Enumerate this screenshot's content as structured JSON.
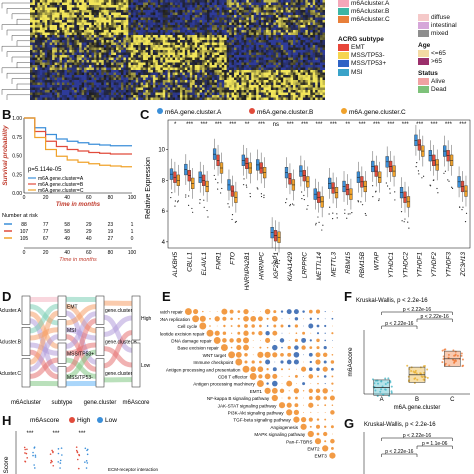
{
  "panels": {
    "B": "B",
    "C": "C",
    "D": "D",
    "E": "E",
    "F": "F",
    "G": "G",
    "H": "H"
  },
  "colors": {
    "cluster_a": "#3b8fd9",
    "cluster_b": "#e14b3b",
    "cluster_c": "#f0a22b",
    "heat_low": "#2e3b9a",
    "heat_high": "#f2e65a",
    "heat_mid": "#1a1a1a"
  },
  "heatmap_legend": {
    "top_items": [
      {
        "label": "m6Acluster.A",
        "color": "#f4a7b9"
      },
      {
        "label": "m6Acluster.B",
        "color": "#3bb5a5"
      },
      {
        "label": "m6Acluster.C",
        "color": "#e87f3a"
      }
    ],
    "lauren_items": [
      {
        "label": "diffuse",
        "color": "#f5c9c9"
      },
      {
        "label": "intestinal",
        "color": "#d6a6d9"
      },
      {
        "label": "mixed",
        "color": "#8e8e8e"
      }
    ],
    "acrg_title": "ACRG subtype",
    "acrg_items": [
      {
        "label": "EMT",
        "color": "#e8463a"
      },
      {
        "label": "MSS/TP53-",
        "color": "#f5d44e"
      },
      {
        "label": "MSS/TP53+",
        "color": "#2f63c5"
      },
      {
        "label": "MSI",
        "color": "#3aa3c9"
      }
    ],
    "age_title": "Age",
    "age_items": [
      {
        "label": "<=65",
        "color": "#f3d9a3"
      },
      {
        "label": ">65",
        "color": "#9b2f6b"
      }
    ],
    "status_title": "Status",
    "status_items": [
      {
        "label": "Alive",
        "color": "#f0a2a2"
      },
      {
        "label": "Dead",
        "color": "#7ec27a"
      }
    ]
  },
  "km": {
    "ylabel": "Survival probability",
    "xlabel": "Time in months",
    "pvalue": "p=5.114e-05",
    "strata": [
      "m6A.gene.cluster=A",
      "m6A.gene.cluster=B",
      "m6A.gene.cluster=C"
    ],
    "risk_title": "Number at risk",
    "risk_rows": [
      [
        "88",
        "77",
        "58",
        "29",
        "23",
        "1"
      ],
      [
        "107",
        "77",
        "58",
        "29",
        "19",
        "1"
      ],
      [
        "105",
        "67",
        "49",
        "40",
        "27",
        "0"
      ]
    ],
    "x_ticks": [
      "0",
      "20",
      "40",
      "60",
      "80",
      "100"
    ],
    "y_ticks": [
      "0.00",
      "0.25",
      "0.50",
      "0.75",
      "1.00"
    ]
  },
  "chart_data": [
    {
      "type": "line",
      "title": "",
      "xlabel": "Time in months",
      "ylabel": "Survival probability",
      "ylim": [
        0,
        1
      ],
      "xlim": [
        0,
        100
      ],
      "series": [
        {
          "name": "m6A.gene.cluster=A",
          "x": [
            0,
            10,
            20,
            30,
            40,
            50,
            60,
            70,
            80,
            90,
            100
          ],
          "y": [
            1.0,
            0.87,
            0.78,
            0.72,
            0.69,
            0.67,
            0.65,
            0.64,
            0.63,
            0.63,
            0.63
          ]
        },
        {
          "name": "m6A.gene.cluster=B",
          "x": [
            0,
            10,
            20,
            30,
            40,
            50,
            60,
            70,
            80,
            90,
            100
          ],
          "y": [
            1.0,
            0.82,
            0.69,
            0.62,
            0.58,
            0.56,
            0.54,
            0.53,
            0.52,
            0.52,
            0.52
          ]
        },
        {
          "name": "m6A.gene.cluster=C",
          "x": [
            0,
            10,
            20,
            30,
            40,
            50,
            60,
            70,
            80,
            90,
            100
          ],
          "y": [
            1.0,
            0.74,
            0.58,
            0.49,
            0.44,
            0.41,
            0.39,
            0.37,
            0.36,
            0.35,
            0.35
          ]
        }
      ]
    },
    {
      "type": "bar",
      "title": "",
      "ylabel": "Relative Expression",
      "legend": [
        "m6A.gene.cluster.A",
        "m6A.gene.cluster.B",
        "m6A.gene.cluster.C"
      ],
      "categories": [
        "ALKBH5",
        "CBLL1",
        "ELAVL1",
        "FMR1",
        "FTO",
        "HNRNPA2B1",
        "HNRNPC",
        "IGF2BP1",
        "KIAA1429",
        "LRPPRC",
        "METTL14",
        "METTL3",
        "RBM15",
        "RBM15B",
        "WTAP",
        "YTHDC1",
        "YTHDC2",
        "YTHDF1",
        "YTHDF2",
        "YTHDF3",
        "ZC3H13"
      ],
      "significance": [
        "*",
        "***",
        "***",
        "***",
        "***",
        "**",
        "***",
        "ns",
        "***",
        "***",
        "***",
        "***",
        "**",
        "***",
        "***",
        "***",
        "***",
        "***",
        "***",
        "***",
        "***"
      ],
      "y_ticks": [
        4,
        6,
        8,
        10
      ],
      "ylim": [
        3.6,
        11.4
      ],
      "series": [
        {
          "name": "m6A.gene.cluster.A",
          "values": [
            8.4,
            8.7,
            8.2,
            9.7,
            7.7,
            9.3,
            9.0,
            4.6,
            8.5,
            8.6,
            7.1,
            7.8,
            7.6,
            8.2,
            8.9,
            9.2,
            7.2,
            10.6,
            9.6,
            9.9,
            7.9
          ]
        },
        {
          "name": "m6A.gene.cluster.B",
          "values": [
            8.2,
            8.3,
            8.0,
            9.3,
            7.3,
            9.1,
            8.8,
            4.4,
            8.1,
            8.3,
            6.9,
            7.5,
            7.4,
            7.9,
            8.6,
            8.9,
            6.9,
            10.3,
            9.3,
            9.6,
            7.6
          ]
        },
        {
          "name": "m6A.gene.cluster.C",
          "values": [
            8.0,
            7.8,
            7.6,
            8.8,
            6.9,
            8.8,
            8.5,
            4.3,
            7.7,
            7.9,
            6.6,
            7.2,
            7.1,
            7.6,
            8.2,
            8.6,
            6.6,
            9.9,
            9.0,
            9.3,
            7.3
          ]
        }
      ]
    },
    {
      "type": "bar",
      "title": "Kruskal-Wallis, p < 2.2e-16",
      "xlabel": "m6A.gene.cluster",
      "ylabel": "m6Ascore",
      "categories": [
        "A",
        "B",
        "C"
      ],
      "values": [
        0.01,
        0.03,
        0.055
      ],
      "comparisons": [
        "p < 2.22e-16",
        "p < 2.22e-16",
        "p < 2.22e-16"
      ]
    }
  ],
  "sankey": {
    "axes": [
      "m6Acluster",
      "subtype",
      "gene.cluster",
      "m6Ascore"
    ],
    "m6a_nodes": [
      "m6Acluster.A",
      "m6Acluster.B",
      "m6Acluster.C"
    ],
    "subtype_nodes": [
      "EMT",
      "MSI",
      "MSS/TP53+",
      "MSS/TP53-"
    ],
    "gene_nodes": [
      "gene.cluster.A",
      "gene.cluster.B",
      "gene.cluster.C"
    ],
    "score_nodes": [
      "High",
      "Low"
    ]
  },
  "pathways": [
    "Mismatch repair",
    "DNA replication",
    "Cell cycle",
    "Nucleotide excision repair",
    "DNA damage repair",
    "Base excision repair",
    "WNT target",
    "Immune checkpoint",
    "Antigen processing and presentation",
    "CD8 T effector",
    "Antigen processing machinery",
    "EMT1",
    "NF-kappa B signaling pathway",
    "JAK-STAT signaling pathway",
    "PI3K-Akt signaling pathway",
    "TGF-beta signaling pathway",
    "Angiogenesis",
    "MAPK signaling pathway",
    "Pan-F-TBRS",
    "EMT2",
    "EMT3"
  ],
  "panel_g": {
    "title": "Kruskal-Wallis, p < 2.2e-16",
    "comparisons": [
      "p < 2.22e-16",
      "p = 1.1e-06",
      "p < 2.22e-16"
    ]
  },
  "panel_h": {
    "legend_title": "m6Ascore",
    "legend_items": [
      "High",
      "Low"
    ],
    "ylabel": "Score",
    "stars": [
      "***",
      "***",
      "***"
    ],
    "footer": "ECM-receptor interaction"
  }
}
